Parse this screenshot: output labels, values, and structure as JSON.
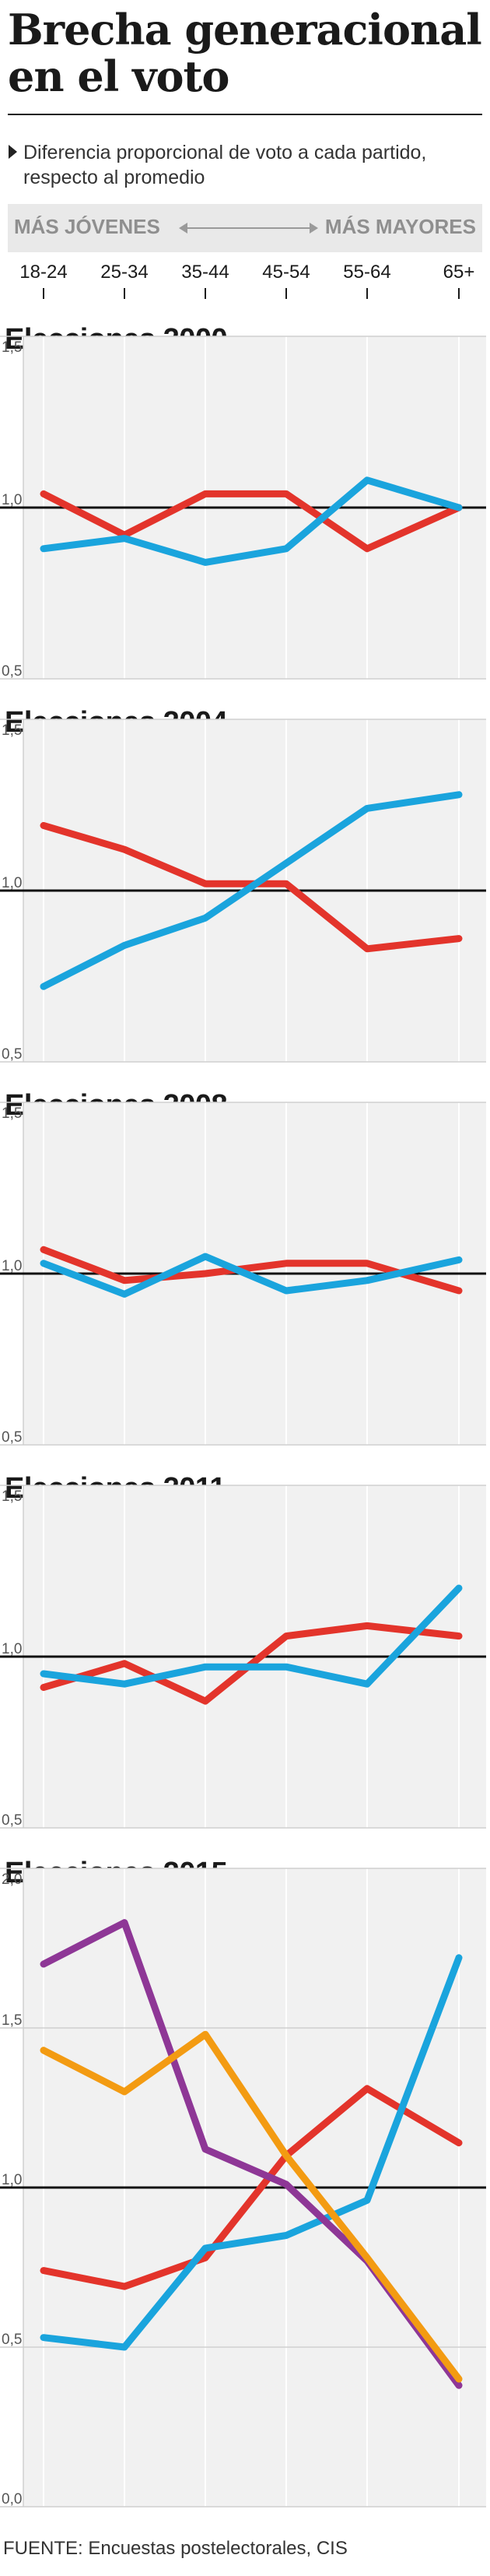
{
  "header": {
    "title": "Brecha generacional en el voto",
    "subtitle": "Diferencia proporcional de voto a cada partido, respecto al promedio",
    "young_label": "MÁS JÓVENES",
    "old_label": "MÁS MAYORES",
    "age_groups": [
      "18-24",
      "25-34",
      "35-44",
      "45-54",
      "55-64",
      "65+"
    ]
  },
  "colors": {
    "psoe": "#e3342b",
    "pp": "#1aa4dd",
    "podemos": "#8e3796",
    "cs": "#f39b12",
    "baseline": "#111111",
    "grid": "#cfcfcf",
    "band": "#f1f1f1"
  },
  "chart_data": [
    {
      "type": "line",
      "title": "Elecciones 2000",
      "x": [
        "18-24",
        "25-34",
        "35-44",
        "45-54",
        "55-64",
        "65+"
      ],
      "ylim": [
        0.5,
        1.5
      ],
      "yticks": [
        "0,5",
        "1,0",
        "1,5"
      ],
      "series": [
        {
          "key": "psoe",
          "values": [
            1.04,
            0.92,
            1.04,
            1.04,
            0.88,
            1.0
          ]
        },
        {
          "key": "pp",
          "values": [
            0.88,
            0.91,
            0.84,
            0.88,
            1.08,
            1.0
          ]
        }
      ]
    },
    {
      "type": "line",
      "title": "Elecciones 2004",
      "x": [
        "18-24",
        "25-34",
        "35-44",
        "45-54",
        "55-64",
        "65+"
      ],
      "ylim": [
        0.5,
        1.5
      ],
      "yticks": [
        "0,5",
        "1,0",
        "1,5"
      ],
      "series": [
        {
          "key": "psoe",
          "values": [
            1.19,
            1.12,
            1.02,
            1.02,
            0.83,
            0.86
          ]
        },
        {
          "key": "pp",
          "values": [
            0.72,
            0.84,
            0.92,
            1.08,
            1.24,
            1.28
          ]
        }
      ]
    },
    {
      "type": "line",
      "title": "Elecciones 2008",
      "x": [
        "18-24",
        "25-34",
        "35-44",
        "45-54",
        "55-64",
        "65+"
      ],
      "ylim": [
        0.5,
        1.5
      ],
      "yticks": [
        "0,5",
        "1,0",
        "1,5"
      ],
      "series": [
        {
          "key": "psoe",
          "values": [
            1.07,
            0.98,
            1.0,
            1.03,
            1.03,
            0.95
          ]
        },
        {
          "key": "pp",
          "values": [
            1.03,
            0.94,
            1.05,
            0.95,
            0.98,
            1.04
          ]
        }
      ]
    },
    {
      "type": "line",
      "title": "Elecciones 2011",
      "x": [
        "18-24",
        "25-34",
        "35-44",
        "45-54",
        "55-64",
        "65+"
      ],
      "ylim": [
        0.5,
        1.5
      ],
      "yticks": [
        "0,5",
        "1,0",
        "1,5"
      ],
      "series": [
        {
          "key": "psoe",
          "values": [
            0.91,
            0.98,
            0.87,
            1.06,
            1.09,
            1.06
          ]
        },
        {
          "key": "pp",
          "values": [
            0.95,
            0.92,
            0.97,
            0.97,
            0.92,
            1.2
          ]
        }
      ]
    },
    {
      "type": "line",
      "title": "Elecciones 2015",
      "x": [
        "18-24",
        "25-34",
        "35-44",
        "45-54",
        "55-64",
        "65+"
      ],
      "ylim": [
        0.0,
        2.0
      ],
      "yticks": [
        "0,0",
        "0,5",
        "1,0",
        "1,5",
        "2,0"
      ],
      "series": [
        {
          "key": "psoe",
          "values": [
            0.74,
            0.69,
            0.78,
            1.1,
            1.31,
            1.14
          ]
        },
        {
          "key": "pp",
          "values": [
            0.53,
            0.5,
            0.81,
            0.85,
            0.96,
            1.72
          ]
        },
        {
          "key": "podemos",
          "values": [
            1.7,
            1.83,
            1.12,
            1.01,
            0.77,
            0.38
          ]
        },
        {
          "key": "cs",
          "values": [
            1.43,
            1.3,
            1.48,
            1.1,
            0.78,
            0.4
          ]
        }
      ]
    }
  ],
  "footer": {
    "source": "FUENTE: Encuestas postelectorales, CIS"
  }
}
